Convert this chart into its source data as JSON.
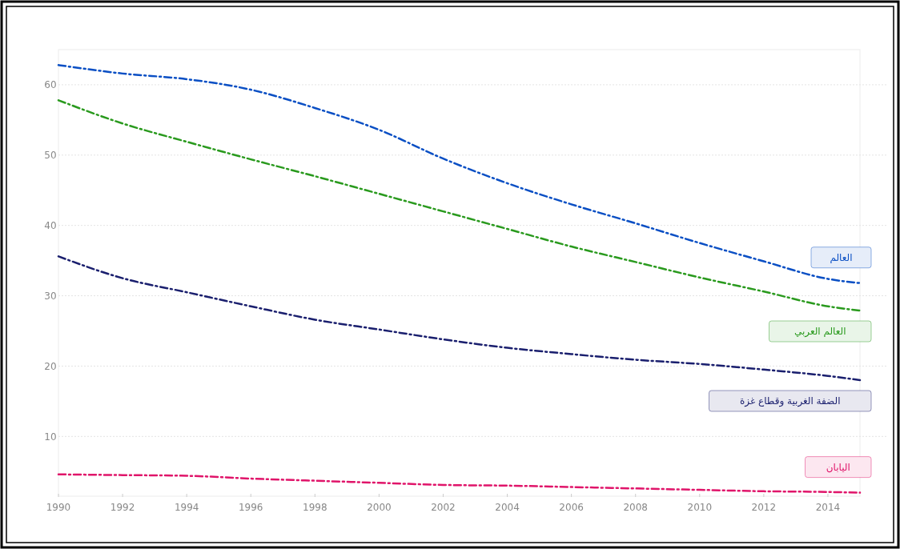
{
  "chart_data": {
    "type": "line",
    "x": [
      1990,
      1992,
      1994,
      1996,
      1998,
      2000,
      2002,
      2004,
      2006,
      2008,
      2010,
      2012,
      2014,
      2015
    ],
    "series": [
      {
        "name": "العالم",
        "color": "#0a4fc4",
        "values": [
          62.8,
          61.6,
          60.8,
          59.3,
          56.7,
          53.6,
          49.5,
          46,
          43,
          40.3,
          37.5,
          34.9,
          32.4,
          31.8
        ]
      },
      {
        "name": "العالم العربي",
        "color": "#2a9a1e",
        "values": [
          57.8,
          54.5,
          51.9,
          49.4,
          47,
          44.5,
          42,
          39.5,
          37,
          34.8,
          32.6,
          30.6,
          28.5,
          27.9
        ]
      },
      {
        "name": "الضفة الغربية وقطاع غزة",
        "color": "#1a1f6e",
        "values": [
          35.6,
          32.5,
          30.5,
          28.5,
          26.6,
          25.2,
          23.8,
          22.6,
          21.7,
          20.9,
          20.3,
          19.5,
          18.6,
          18
        ]
      },
      {
        "name": "اليابان",
        "color": "#e0156a",
        "values": [
          4.6,
          4.5,
          4.4,
          4,
          3.7,
          3.4,
          3.1,
          3,
          2.8,
          2.6,
          2.4,
          2.2,
          2.1,
          2
        ]
      }
    ],
    "xlim": [
      1990,
      2015
    ],
    "xticks": [
      1990,
      1992,
      1994,
      1996,
      1998,
      2000,
      2002,
      2004,
      2006,
      2008,
      2010,
      2012,
      2014
    ],
    "ylim": [
      1.5,
      65
    ],
    "yticks": [
      10,
      20,
      30,
      40,
      50,
      60
    ],
    "grid": "y",
    "line_style": "dashed",
    "marker": "none"
  }
}
